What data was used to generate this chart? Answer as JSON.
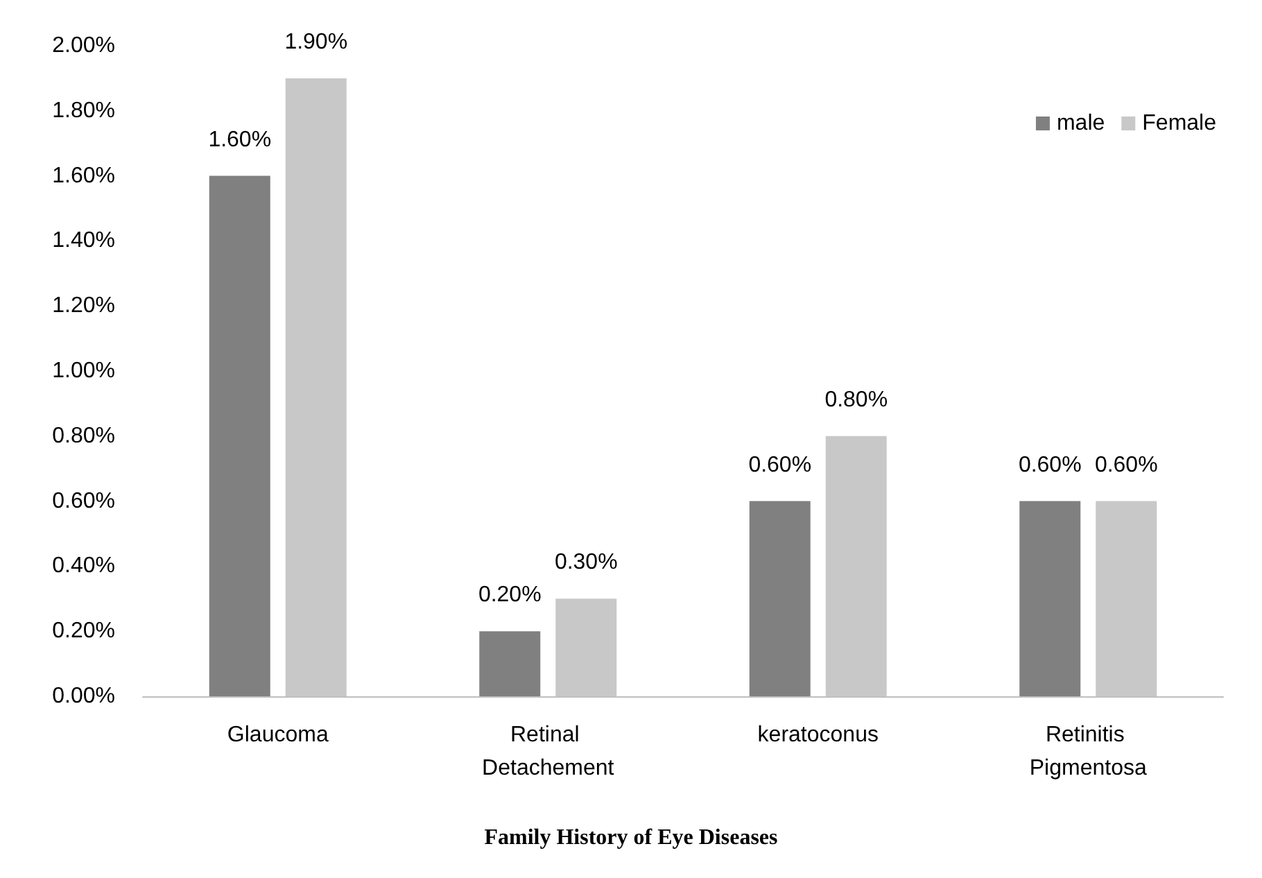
{
  "chart_data": {
    "type": "bar",
    "title": "Family History of Eye Diseases",
    "categories": [
      "Glaucoma",
      "Retinal Detachement",
      "keratoconus",
      "Retinitis Pigmentosa"
    ],
    "series": [
      {
        "name": "male",
        "color": "#808080",
        "values": [
          1.6,
          0.2,
          0.6,
          0.6
        ],
        "value_labels": [
          "1.60%",
          "0.20%",
          "0.60%",
          "0.60%"
        ]
      },
      {
        "name": "Female",
        "color": "#c8c8c8",
        "values": [
          1.9,
          0.3,
          0.8,
          0.6
        ],
        "value_labels": [
          "1.90%",
          "0.30%",
          "0.80%",
          "0.60%"
        ]
      }
    ],
    "ylim": [
      0,
      2
    ],
    "yticks": [
      {
        "value": 0,
        "label": "0.00%"
      },
      {
        "value": 0.2,
        "label": "0.20%"
      },
      {
        "value": 0.4,
        "label": "0.40%"
      },
      {
        "value": 0.6,
        "label": "0.60%"
      },
      {
        "value": 0.8,
        "label": "0.80%"
      },
      {
        "value": 1,
        "label": "1.00%"
      },
      {
        "value": 1.2,
        "label": "1.20%"
      },
      {
        "value": 1.4,
        "label": "1.40%"
      },
      {
        "value": 1.6,
        "label": "1.60%"
      },
      {
        "value": 1.8,
        "label": "1.80%"
      },
      {
        "value": 2,
        "label": "2.00%"
      }
    ],
    "grid": false,
    "legend": "top right"
  }
}
